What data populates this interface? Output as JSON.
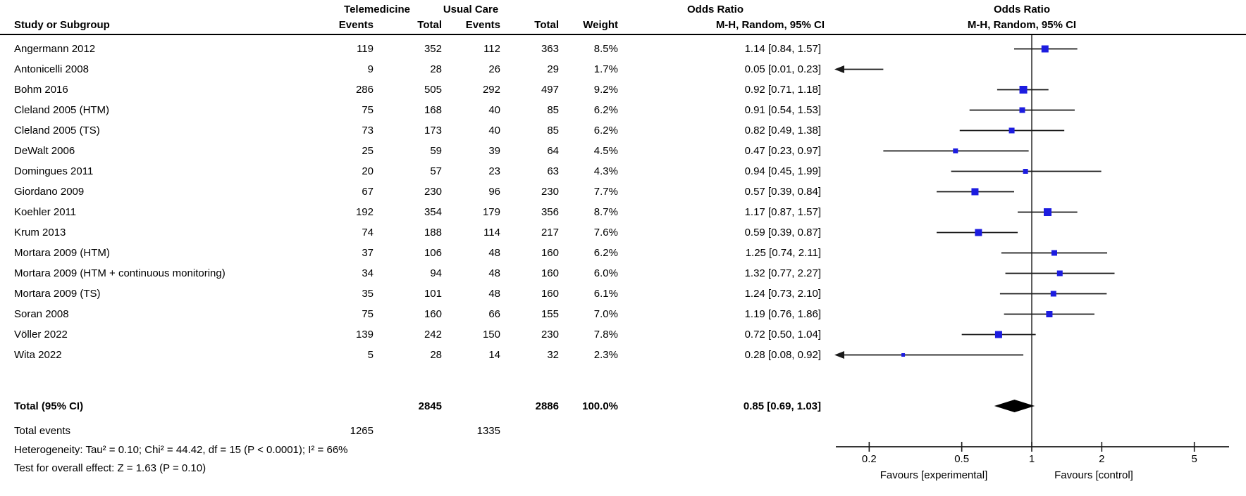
{
  "header": {
    "group1": "Telemedicine",
    "group2": "Usual Care",
    "study_col": "Study or Subgroup",
    "events_col": "Events",
    "total_col": "Total",
    "weight_col": "Weight",
    "or_title": "Odds Ratio",
    "method": "M-H, Random, 95% CI"
  },
  "chart_data": {
    "type": "scatter",
    "subtype": "forest-plot-meta-analysis",
    "effect_measure": "Odds Ratio",
    "method": "M-H, Random, 95% CI",
    "x_scale": "log10",
    "x_ticks": [
      0.2,
      0.5,
      1,
      2,
      5
    ],
    "x_range": [
      0.14,
      7.2
    ],
    "null_value": 1,
    "grid": false,
    "studies": [
      {
        "name": "Angermann 2012",
        "events1": 119,
        "total1": 352,
        "events2": 112,
        "total2": 363,
        "weight": "8.5%",
        "weight_pct": 8.5,
        "or": 1.14,
        "ci_low": 0.84,
        "ci_high": 1.57,
        "or_text": "1.14 [0.84, 1.57]"
      },
      {
        "name": "Antonicelli 2008",
        "events1": 9,
        "total1": 28,
        "events2": 26,
        "total2": 29,
        "weight": "1.7%",
        "weight_pct": 1.7,
        "or": 0.05,
        "ci_low": 0.01,
        "ci_high": 0.23,
        "or_text": "0.05 [0.01, 0.23]"
      },
      {
        "name": "Bohm 2016",
        "events1": 286,
        "total1": 505,
        "events2": 292,
        "total2": 497,
        "weight": "9.2%",
        "weight_pct": 9.2,
        "or": 0.92,
        "ci_low": 0.71,
        "ci_high": 1.18,
        "or_text": "0.92 [0.71, 1.18]"
      },
      {
        "name": "Cleland 2005 (HTM)",
        "events1": 75,
        "total1": 168,
        "events2": 40,
        "total2": 85,
        "weight": "6.2%",
        "weight_pct": 6.2,
        "or": 0.91,
        "ci_low": 0.54,
        "ci_high": 1.53,
        "or_text": "0.91 [0.54, 1.53]"
      },
      {
        "name": "Cleland 2005 (TS)",
        "events1": 73,
        "total1": 173,
        "events2": 40,
        "total2": 85,
        "weight": "6.2%",
        "weight_pct": 6.2,
        "or": 0.82,
        "ci_low": 0.49,
        "ci_high": 1.38,
        "or_text": "0.82 [0.49, 1.38]"
      },
      {
        "name": "DeWalt 2006",
        "events1": 25,
        "total1": 59,
        "events2": 39,
        "total2": 64,
        "weight": "4.5%",
        "weight_pct": 4.5,
        "or": 0.47,
        "ci_low": 0.23,
        "ci_high": 0.97,
        "or_text": "0.47 [0.23, 0.97]"
      },
      {
        "name": "Domingues 2011",
        "events1": 20,
        "total1": 57,
        "events2": 23,
        "total2": 63,
        "weight": "4.3%",
        "weight_pct": 4.3,
        "or": 0.94,
        "ci_low": 0.45,
        "ci_high": 1.99,
        "or_text": "0.94 [0.45, 1.99]"
      },
      {
        "name": "Giordano 2009",
        "events1": 67,
        "total1": 230,
        "events2": 96,
        "total2": 230,
        "weight": "7.7%",
        "weight_pct": 7.7,
        "or": 0.57,
        "ci_low": 0.39,
        "ci_high": 0.84,
        "or_text": "0.57 [0.39, 0.84]"
      },
      {
        "name": "Koehler 2011",
        "events1": 192,
        "total1": 354,
        "events2": 179,
        "total2": 356,
        "weight": "8.7%",
        "weight_pct": 8.7,
        "or": 1.17,
        "ci_low": 0.87,
        "ci_high": 1.57,
        "or_text": "1.17 [0.87, 1.57]"
      },
      {
        "name": "Krum 2013",
        "events1": 74,
        "total1": 188,
        "events2": 114,
        "total2": 217,
        "weight": "7.6%",
        "weight_pct": 7.6,
        "or": 0.59,
        "ci_low": 0.39,
        "ci_high": 0.87,
        "or_text": "0.59 [0.39, 0.87]"
      },
      {
        "name": "Mortara 2009 (HTM)",
        "events1": 37,
        "total1": 106,
        "events2": 48,
        "total2": 160,
        "weight": "6.2%",
        "weight_pct": 6.2,
        "or": 1.25,
        "ci_low": 0.74,
        "ci_high": 2.11,
        "or_text": "1.25 [0.74, 2.11]"
      },
      {
        "name": "Mortara 2009 (HTM + continuous monitoring)",
        "events1": 34,
        "total1": 94,
        "events2": 48,
        "total2": 160,
        "weight": "6.0%",
        "weight_pct": 6.0,
        "or": 1.32,
        "ci_low": 0.77,
        "ci_high": 2.27,
        "or_text": "1.32 [0.77, 2.27]"
      },
      {
        "name": "Mortara 2009 (TS)",
        "events1": 35,
        "total1": 101,
        "events2": 48,
        "total2": 160,
        "weight": "6.1%",
        "weight_pct": 6.1,
        "or": 1.24,
        "ci_low": 0.73,
        "ci_high": 2.1,
        "or_text": "1.24 [0.73, 2.10]"
      },
      {
        "name": "Soran 2008",
        "events1": 75,
        "total1": 160,
        "events2": 66,
        "total2": 155,
        "weight": "7.0%",
        "weight_pct": 7.0,
        "or": 1.19,
        "ci_low": 0.76,
        "ci_high": 1.86,
        "or_text": "1.19 [0.76, 1.86]"
      },
      {
        "name": "Völler 2022",
        "events1": 139,
        "total1": 242,
        "events2": 150,
        "total2": 230,
        "weight": "7.8%",
        "weight_pct": 7.8,
        "or": 0.72,
        "ci_low": 0.5,
        "ci_high": 1.04,
        "or_text": "0.72 [0.50, 1.04]"
      },
      {
        "name": "Wita 2022",
        "events1": 5,
        "total1": 28,
        "events2": 14,
        "total2": 32,
        "weight": "2.3%",
        "weight_pct": 2.3,
        "or": 0.28,
        "ci_low": 0.08,
        "ci_high": 0.92,
        "or_text": "0.28 [0.08, 0.92]"
      }
    ],
    "total": {
      "label": "Total (95% CI)",
      "total1": 2845,
      "total2": 2886,
      "weight": "100.0%",
      "or": 0.85,
      "ci_low": 0.69,
      "ci_high": 1.03,
      "or_text": "0.85 [0.69, 1.03]"
    },
    "total_events": {
      "label": "Total events",
      "events1": 1265,
      "events2": 1335
    },
    "footnotes": {
      "heterogeneity": "Heterogeneity: Tau² = 0.10; Chi² = 44.42, df = 15 (P < 0.0001); I² = 66%",
      "overall_effect": "Test for overall effect: Z = 1.63 (P = 0.10)"
    },
    "favours_left": "Favours [experimental]",
    "favours_right": "Favours [control]",
    "colors": {
      "marker": "#1c1ce0",
      "ci_line": "#1a1a1a",
      "diamond": "#000000",
      "axis": "#1a1a1a"
    }
  }
}
